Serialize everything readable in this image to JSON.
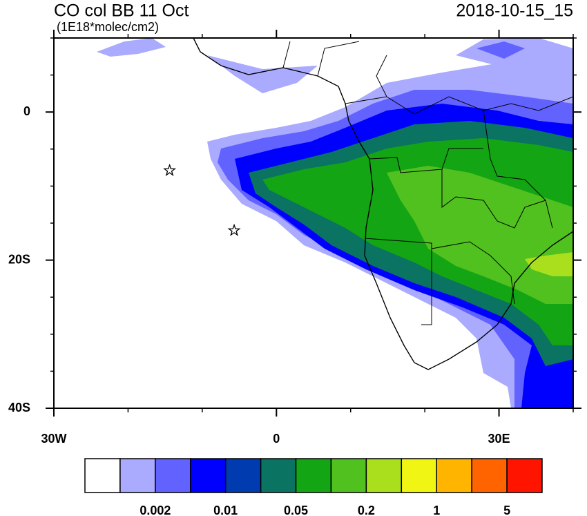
{
  "map": {
    "title": "CO col BB 11 Oct",
    "units": "(1E18*molec/cm2)",
    "timestamp": "2018-10-15_15",
    "xlim": [
      -30,
      40
    ],
    "ylim": [
      -40,
      10
    ],
    "xticks": [
      {
        "value": -30,
        "label": "30W"
      },
      0,
      {
        "value": 30,
        "label": "30E"
      }
    ],
    "yticks": [
      0,
      {
        "value": -20,
        "label": "20S"
      },
      {
        "value": -40,
        "label": "40S"
      }
    ],
    "markers": [
      {
        "lon": -14.4,
        "lat": -7.9
      },
      {
        "lon": -5.7,
        "lat": -16.0
      }
    ],
    "colorbar": {
      "colors": [
        "#ffffff",
        "#aaaaff",
        "#6262ff",
        "#0000ff",
        "#003cb0",
        "#0a7361",
        "#14a514",
        "#50c11e",
        "#aadf1e",
        "#f0f514",
        "#ffb400",
        "#ff6400",
        "#ff1400"
      ],
      "labels": [
        0.002,
        0.01,
        0.05,
        0.2,
        1,
        5
      ]
    }
  }
}
